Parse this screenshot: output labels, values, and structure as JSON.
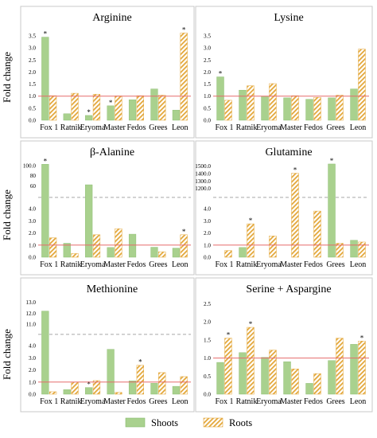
{
  "y_label": "Fold change",
  "legend": [
    {
      "name": "Shoots",
      "style": "solid"
    },
    {
      "name": "Roots",
      "style": "hatched"
    }
  ],
  "colors": {
    "shoots": "#a9d18e",
    "shoots_edge": "#86b86a",
    "roots_stripe": "#e3a73a",
    "reference_line": "#e56b6b",
    "break_line": "#a8a8a8"
  },
  "chart_data": [
    {
      "type": "bar",
      "title": "Arginine",
      "categories": [
        "Fox 1",
        "Ratnik",
        "Eryoma",
        "Master",
        "Fedos",
        "Grees",
        "Leon"
      ],
      "ylim": [
        0,
        3.8
      ],
      "yticks": [
        0.0,
        0.5,
        1.0,
        1.5,
        2.0,
        2.5,
        3.0,
        3.5
      ],
      "ytick_labels": [
        "0.0",
        "0.5",
        "1.0",
        "1.5",
        "2.0",
        "2.5",
        "3.0",
        "3.5"
      ],
      "reference_line": 1.0,
      "series": [
        {
          "name": "Shoots",
          "values": [
            3.45,
            0.27,
            0.2,
            0.6,
            0.85,
            1.3,
            0.42
          ],
          "significant": [
            true,
            false,
            true,
            true,
            false,
            false,
            false
          ]
        },
        {
          "name": "Roots",
          "values": [
            1.02,
            1.12,
            1.08,
            1.01,
            1.02,
            1.04,
            3.62
          ],
          "significant": [
            false,
            false,
            false,
            false,
            false,
            false,
            true
          ]
        }
      ]
    },
    {
      "type": "bar",
      "title": "Lysine",
      "categories": [
        "Fox 1",
        "Ratnik",
        "Eryoma",
        "Master",
        "Fedos",
        "Grees",
        "Leon"
      ],
      "ylim": [
        0,
        3.8
      ],
      "yticks": [
        0.0,
        0.5,
        1.0,
        1.5,
        2.0,
        2.5,
        3.0,
        3.5
      ],
      "ytick_labels": [
        "0.0",
        "0.5",
        "1.0",
        "1.5",
        "2.0",
        "2.5",
        "3.0",
        "3.5"
      ],
      "reference_line": 1.0,
      "series": [
        {
          "name": "Shoots",
          "values": [
            1.8,
            1.25,
            1.0,
            0.93,
            0.87,
            0.93,
            1.3
          ],
          "significant": [
            true,
            false,
            false,
            false,
            false,
            false,
            false
          ]
        },
        {
          "name": "Roots",
          "values": [
            0.83,
            1.43,
            1.52,
            1.02,
            0.95,
            1.04,
            2.95
          ],
          "significant": [
            false,
            false,
            false,
            false,
            false,
            false,
            false
          ]
        }
      ]
    },
    {
      "type": "bar",
      "title": "β-Alanine",
      "categories": [
        "Fox 1",
        "Ratnik",
        "Eryoma",
        "Master",
        "Fedos",
        "Grees",
        "Leon"
      ],
      "broken_axis": {
        "break_at": 4.8,
        "upper_base": 40,
        "upper_top": 105
      },
      "yticks": [
        0.0,
        1.0,
        2.0,
        3.0,
        4.0,
        60.0,
        80.0,
        100.0
      ],
      "ytick_labels": [
        "0.0",
        "1.0",
        "2.0",
        "3.0",
        "4.0",
        "60",
        "80",
        "100.0"
      ],
      "reference_line": 1.0,
      "series": [
        {
          "name": "Shoots",
          "values": [
            103,
            1.15,
            62,
            0.8,
            1.9,
            0.82,
            0.75
          ],
          "significant": [
            true,
            false,
            false,
            false,
            false,
            false,
            false
          ]
        },
        {
          "name": "Roots",
          "values": [
            1.6,
            0.3,
            1.85,
            2.35,
            0.0,
            0.45,
            1.85
          ],
          "significant": [
            false,
            false,
            false,
            false,
            false,
            false,
            true
          ]
        }
      ]
    },
    {
      "type": "bar",
      "title": "Glutamine",
      "categories": [
        "Fox 1",
        "Ratnik",
        "Eryoma",
        "Master",
        "Fedos",
        "Grees",
        "Leon"
      ],
      "broken_axis": {
        "break_at": 4.8,
        "upper_base": 1100,
        "upper_top": 1540
      },
      "yticks": [
        0.0,
        1.0,
        2.0,
        3.0,
        4.0,
        1200.0,
        1300.0,
        1400.0,
        1500.0
      ],
      "ytick_labels": [
        "0.0",
        "1.0",
        "2.0",
        "3.0",
        "4.0",
        "1200.0",
        "1300.0",
        "1400.0",
        "1500.0"
      ],
      "reference_line": 1.0,
      "series": [
        {
          "name": "Shoots",
          "values": [
            0.0,
            0.8,
            0.0,
            0.0,
            0.0,
            1530,
            1.4
          ],
          "significant": [
            false,
            false,
            false,
            false,
            false,
            true,
            false
          ]
        },
        {
          "name": "Roots",
          "values": [
            0.55,
            2.75,
            1.75,
            1405,
            3.8,
            1.15,
            1.25
          ],
          "significant": [
            false,
            true,
            false,
            true,
            false,
            false,
            false
          ]
        }
      ]
    },
    {
      "type": "bar",
      "title": "Methionine",
      "categories": [
        "Fox 1",
        "Ratnik",
        "Eryoma",
        "Master",
        "Fedos",
        "Grees",
        "Leon"
      ],
      "broken_axis": {
        "break_at": 4.8,
        "upper_base": 10.2,
        "upper_top": 13.2
      },
      "yticks": [
        0.0,
        1.0,
        2.0,
        3.0,
        4.0,
        11.0,
        12.0,
        13.0
      ],
      "ytick_labels": [
        "0.0",
        "1.0",
        "2.0",
        "3.0",
        "4.0",
        "11.0",
        "12.0",
        "13.0"
      ],
      "reference_line": 1.0,
      "series": [
        {
          "name": "Shoots",
          "values": [
            12.2,
            0.38,
            0.55,
            3.7,
            1.1,
            0.9,
            0.65
          ],
          "significant": [
            false,
            false,
            true,
            false,
            false,
            false,
            false
          ]
        },
        {
          "name": "Roots",
          "values": [
            0.2,
            1.0,
            1.12,
            0.15,
            2.38,
            1.78,
            1.45
          ],
          "significant": [
            false,
            false,
            false,
            false,
            true,
            false,
            false
          ]
        }
      ]
    },
    {
      "type": "bar",
      "title": "Serine + Aspargine",
      "categories": [
        "Fox 1",
        "Ratnik",
        "Eryoma",
        "Master",
        "Fedos",
        "Grees",
        "Leon"
      ],
      "ylim": [
        0,
        2.6
      ],
      "yticks": [
        0.0,
        0.5,
        1.0,
        1.5,
        2.0,
        2.5
      ],
      "ytick_labels": [
        "0.0",
        "0.5",
        "1.0",
        "1.5",
        "2.0",
        "2.5"
      ],
      "reference_line": 1.0,
      "series": [
        {
          "name": "Shoots",
          "values": [
            0.88,
            1.15,
            1.02,
            0.9,
            0.3,
            0.93,
            1.38
          ],
          "significant": [
            false,
            false,
            false,
            false,
            false,
            false,
            false
          ]
        },
        {
          "name": "Roots",
          "values": [
            1.55,
            1.85,
            1.22,
            0.7,
            0.57,
            1.55,
            1.47
          ],
          "significant": [
            true,
            true,
            false,
            false,
            false,
            false,
            true
          ]
        }
      ]
    }
  ]
}
